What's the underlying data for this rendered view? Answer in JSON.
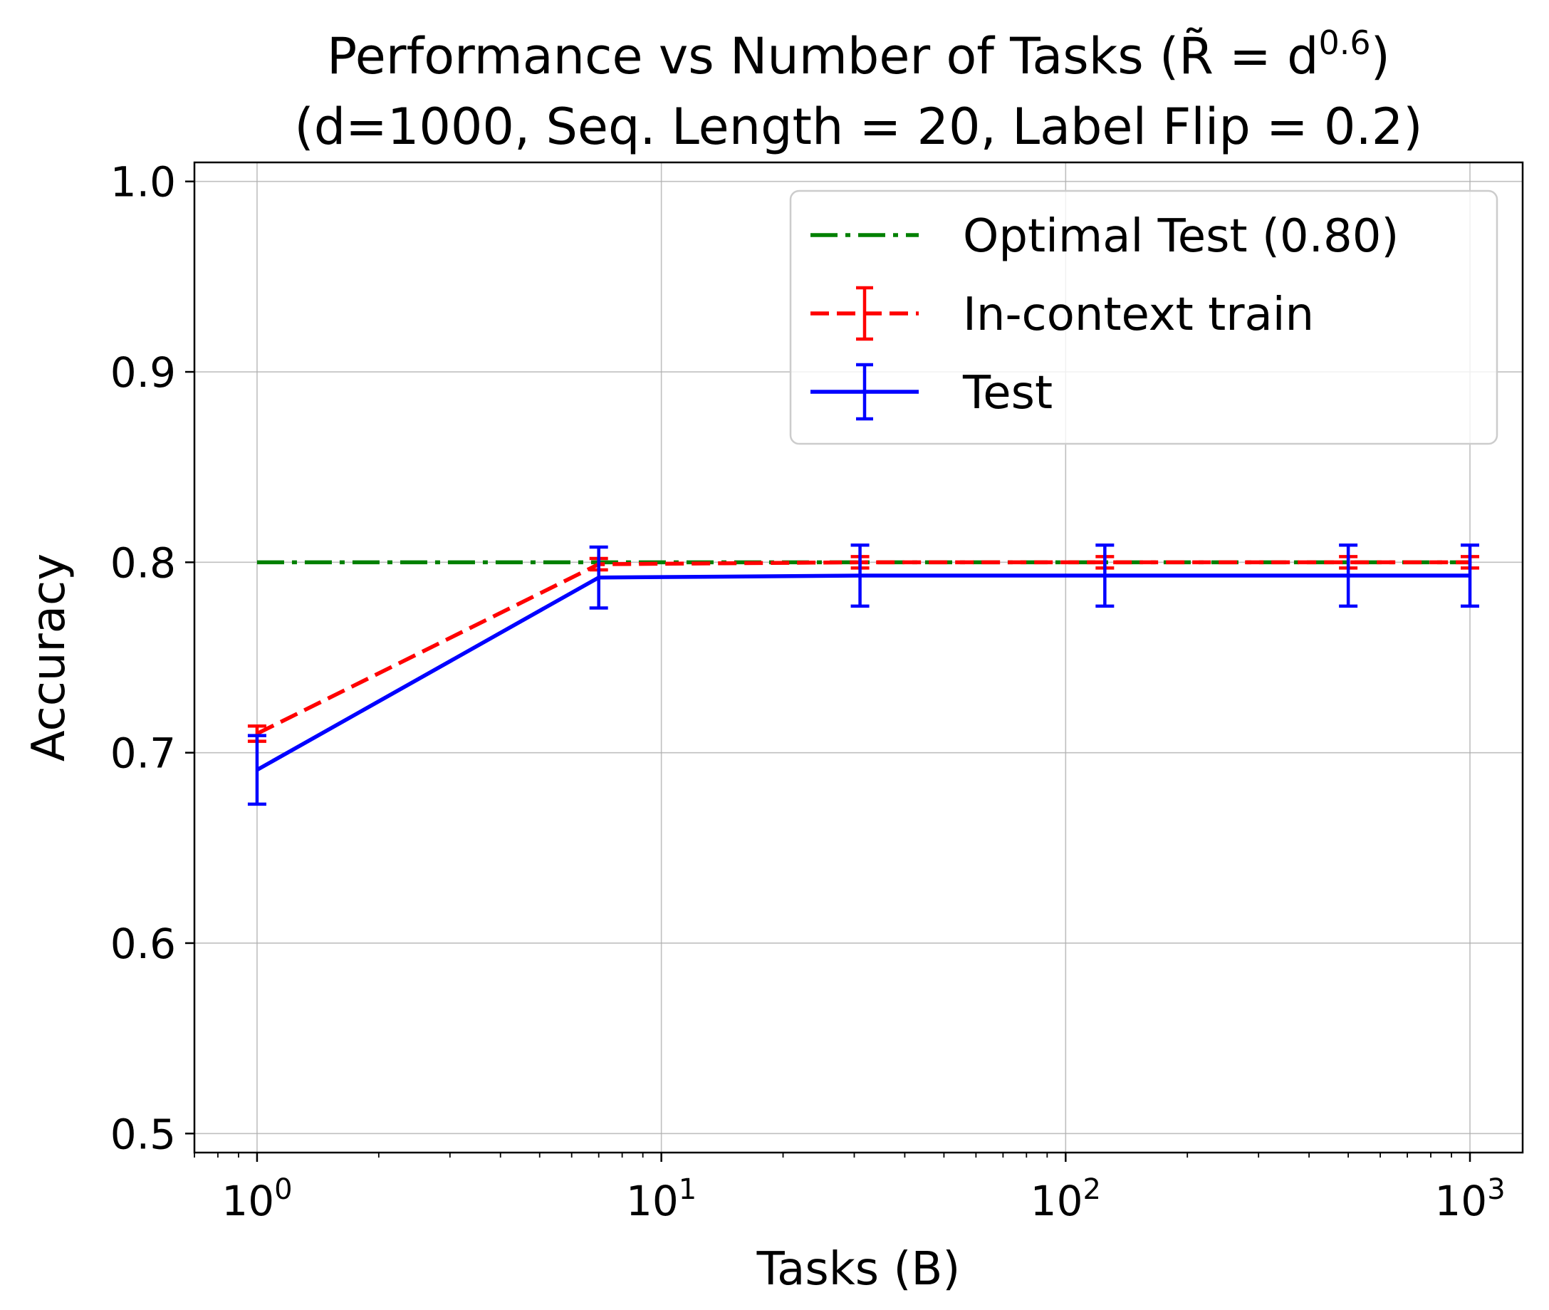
{
  "chart_data": {
    "type": "line",
    "title_lines": [
      {
        "before": "Performance vs Number of Tasks (R̃ = d",
        "sup": "0.6",
        "after": ")"
      },
      {
        "before": "(d=1000, Seq. Length = 20, Label Flip = 0.2)",
        "sup": "",
        "after": ""
      }
    ],
    "xlabel": "Tasks (B)",
    "ylabel": "Accuracy",
    "xscale": "log",
    "xlim": [
      0.7,
      1350
    ],
    "ylim": [
      0.49,
      1.01
    ],
    "grid": true,
    "legend_position": "top-right",
    "x_ticks": [
      {
        "value": 1,
        "base": "10",
        "exp": "0"
      },
      {
        "value": 10,
        "base": "10",
        "exp": "1"
      },
      {
        "value": 100,
        "base": "10",
        "exp": "2"
      },
      {
        "value": 1000,
        "base": "10",
        "exp": "3"
      }
    ],
    "y_ticks": [
      {
        "value": 0.5,
        "label": "0.5"
      },
      {
        "value": 0.6,
        "label": "0.6"
      },
      {
        "value": 0.7,
        "label": "0.7"
      },
      {
        "value": 0.8,
        "label": "0.8"
      },
      {
        "value": 0.9,
        "label": "0.9"
      },
      {
        "value": 1.0,
        "label": "1.0"
      }
    ],
    "reference_line": {
      "name": "Optimal Test (0.80)",
      "y": 0.8,
      "x_range": [
        1,
        1000
      ],
      "color": "#008000",
      "style": "dashdot"
    },
    "series": [
      {
        "name": "In-context train",
        "color": "#ff0000",
        "style": "dashed",
        "x": [
          1,
          7,
          31,
          125,
          500,
          1000
        ],
        "y": [
          0.71,
          0.799,
          0.8,
          0.8,
          0.8,
          0.8
        ],
        "err": [
          0.004,
          0.003,
          0.003,
          0.003,
          0.003,
          0.003
        ]
      },
      {
        "name": "Test",
        "color": "#0000ff",
        "style": "solid",
        "x": [
          1,
          7,
          31,
          125,
          500,
          1000
        ],
        "y": [
          0.691,
          0.792,
          0.793,
          0.793,
          0.793,
          0.793
        ],
        "err": [
          0.018,
          0.016,
          0.016,
          0.016,
          0.016,
          0.016
        ]
      }
    ]
  }
}
